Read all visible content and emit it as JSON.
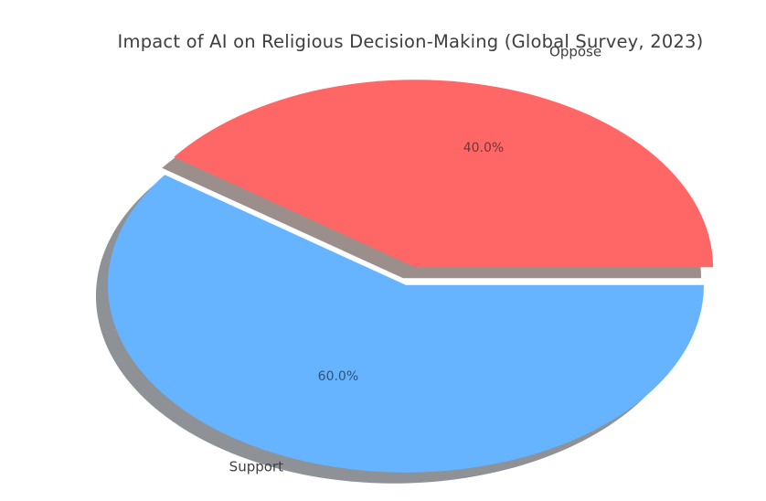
{
  "chart_data": {
    "type": "pie",
    "title": "Impact of AI on Religious Decision-Making (Global Survey, 2023)",
    "slices": [
      {
        "label": "Oppose",
        "value": 40.0,
        "pct_label": "40.0%",
        "color": "#ff6666",
        "shadow_color": "#9c8f8b",
        "pct_text_color": "#7c3237"
      },
      {
        "label": "Support",
        "value": 60.0,
        "pct_label": "60.0%",
        "color": "#66b3ff",
        "shadow_color": "#8e9297",
        "pct_text_color": "#2f5576"
      }
    ],
    "start_angle": 0,
    "counterclockwise": true,
    "explode": 0.05,
    "shadow": true,
    "legend": "none",
    "grid": "off",
    "background": "#ffffff",
    "title_color": "#3e3e3e",
    "label_color": "#3f3f3f"
  }
}
